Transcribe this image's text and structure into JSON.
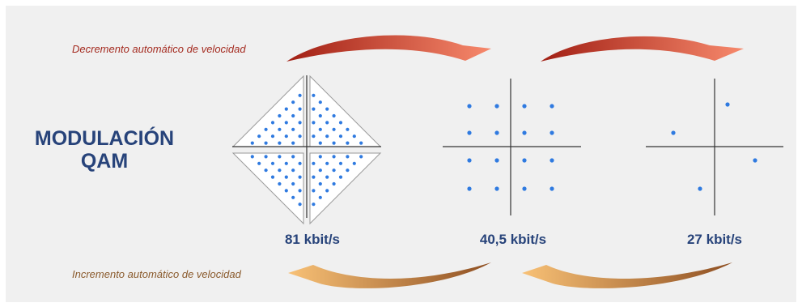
{
  "captions": {
    "decrement": "Decremento automático de velocidad",
    "increment": "Incremento automático de velocidad"
  },
  "title": {
    "line1": "MODULACIÓN",
    "line2": "QAM"
  },
  "constellations": [
    {
      "rate": "81 kbit/s",
      "points": 128,
      "layout": "diamond"
    },
    {
      "rate": "40,5 kbit/s",
      "points": 16,
      "layout": "square-grid"
    },
    {
      "rate": "27 kbit/s",
      "points": 4,
      "layout": "rotated-four"
    }
  ],
  "colors": {
    "background": "#f0f0f0",
    "title": "#27437a",
    "rate_text": "#27437a",
    "dot": "#2f7ae0",
    "axis": "#333333",
    "decrement_caption": "#a42b20",
    "increment_caption": "#8a5a2c",
    "decrement_arrow_dark": "#a11f14",
    "decrement_arrow_light": "#f7896c",
    "increment_arrow_dark": "#8e4f22",
    "increment_arrow_light": "#f8c176"
  }
}
